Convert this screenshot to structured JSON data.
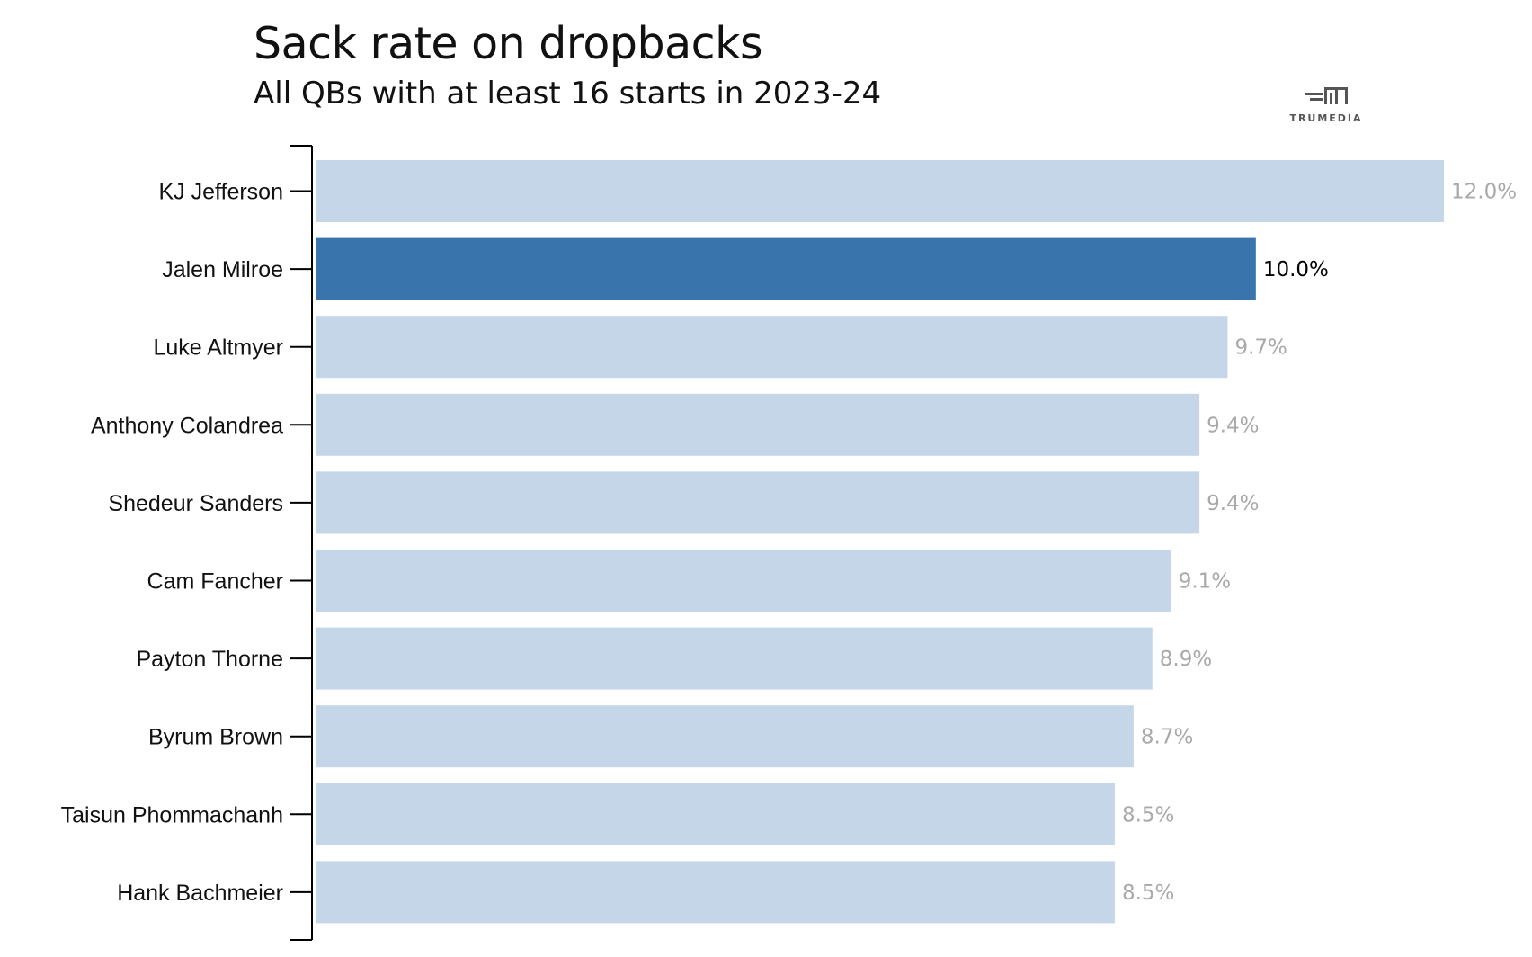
{
  "header": {
    "title": "Sack rate on dropbacks",
    "subtitle": "All QBs with at least 16 starts in 2023-24"
  },
  "logo": {
    "text": "TRUMEDIA",
    "icon": "trumedia-logo-icon"
  },
  "colors": {
    "bar_default": "#c5d6e8",
    "bar_highlight": "#3a74ad",
    "label_default": "#a9a9a9",
    "label_highlight": "#000000",
    "axis": "#000000"
  },
  "chart_data": {
    "type": "bar",
    "orientation": "horizontal",
    "title": "Sack rate on dropbacks",
    "subtitle": "All QBs with at least 16 starts in 2023-24",
    "categories": [
      "KJ Jefferson",
      "Jalen Milroe",
      "Luke Altmyer",
      "Anthony Colandrea",
      "Shedeur Sanders",
      "Cam Fancher",
      "Payton Thorne",
      "Byrum Brown",
      "Taisun Phommachanh",
      "Hank Bachmeier"
    ],
    "values": [
      12.0,
      10.0,
      9.7,
      9.4,
      9.4,
      9.1,
      8.9,
      8.7,
      8.5,
      8.5
    ],
    "value_labels": [
      "12.0%",
      "10.0%",
      "9.7%",
      "9.4%",
      "9.4%",
      "9.1%",
      "8.9%",
      "8.7%",
      "8.5%",
      "8.5%"
    ],
    "highlight": "Jalen Milroe",
    "xlim": [
      0,
      12.0
    ],
    "grid": false,
    "legend": "none"
  }
}
